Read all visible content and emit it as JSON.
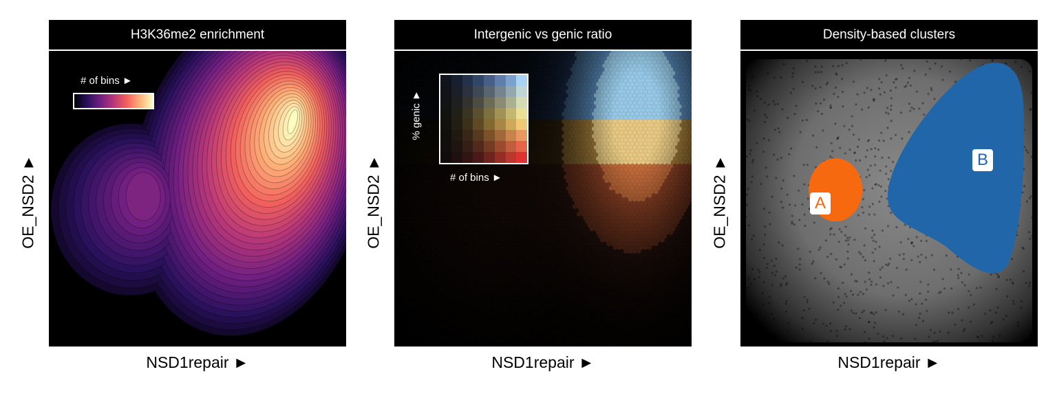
{
  "colors": {
    "magma": [
      "#000004",
      "#2b115e",
      "#721f81",
      "#b73779",
      "#f1605d",
      "#feb078",
      "#fcfdbf"
    ],
    "cluster_a": "#f7690f",
    "cluster_b": "#2066a8",
    "background_points": "#7a7a7a"
  },
  "chart_data": [
    {
      "type": "heatmap",
      "subtype": "density-contour",
      "title": "H3K36me2 enrichment",
      "xlabel": "NSD1repair ►",
      "ylabel": "OE_NSD2 ►",
      "legend": {
        "title": "# of bins ►",
        "placement": "top-left",
        "colormap": "magma"
      },
      "density_peaks": [
        {
          "name": "",
          "x": 0.82,
          "y": 0.76,
          "relative_density": 1.0
        },
        {
          "name": "",
          "x": 0.32,
          "y": 0.51,
          "relative_density": 0.28
        }
      ],
      "grid": false
    },
    {
      "type": "heatmap",
      "subtype": "hexbin",
      "title": "Intergenic vs genic ratio",
      "xlabel": "NSD1repair ►",
      "ylabel": "OE_NSD2 ►",
      "legend": {
        "x_title": "# of bins ►",
        "y_title": "% genic ►",
        "placement": "top-left",
        "type": "bivariate"
      },
      "grid": false
    },
    {
      "type": "scatter",
      "subtype": "density-based clusters",
      "title": "Density-based clusters",
      "xlabel": "NSD1repair ►",
      "ylabel": "OE_NSD2 ►",
      "clusters": [
        {
          "name": "A",
          "color": "#f7690f",
          "center_x": 0.32,
          "center_y": 0.53
        },
        {
          "name": "B",
          "color": "#2066a8",
          "center_x": 0.82,
          "center_y": 0.67
        }
      ],
      "grid": false
    }
  ]
}
